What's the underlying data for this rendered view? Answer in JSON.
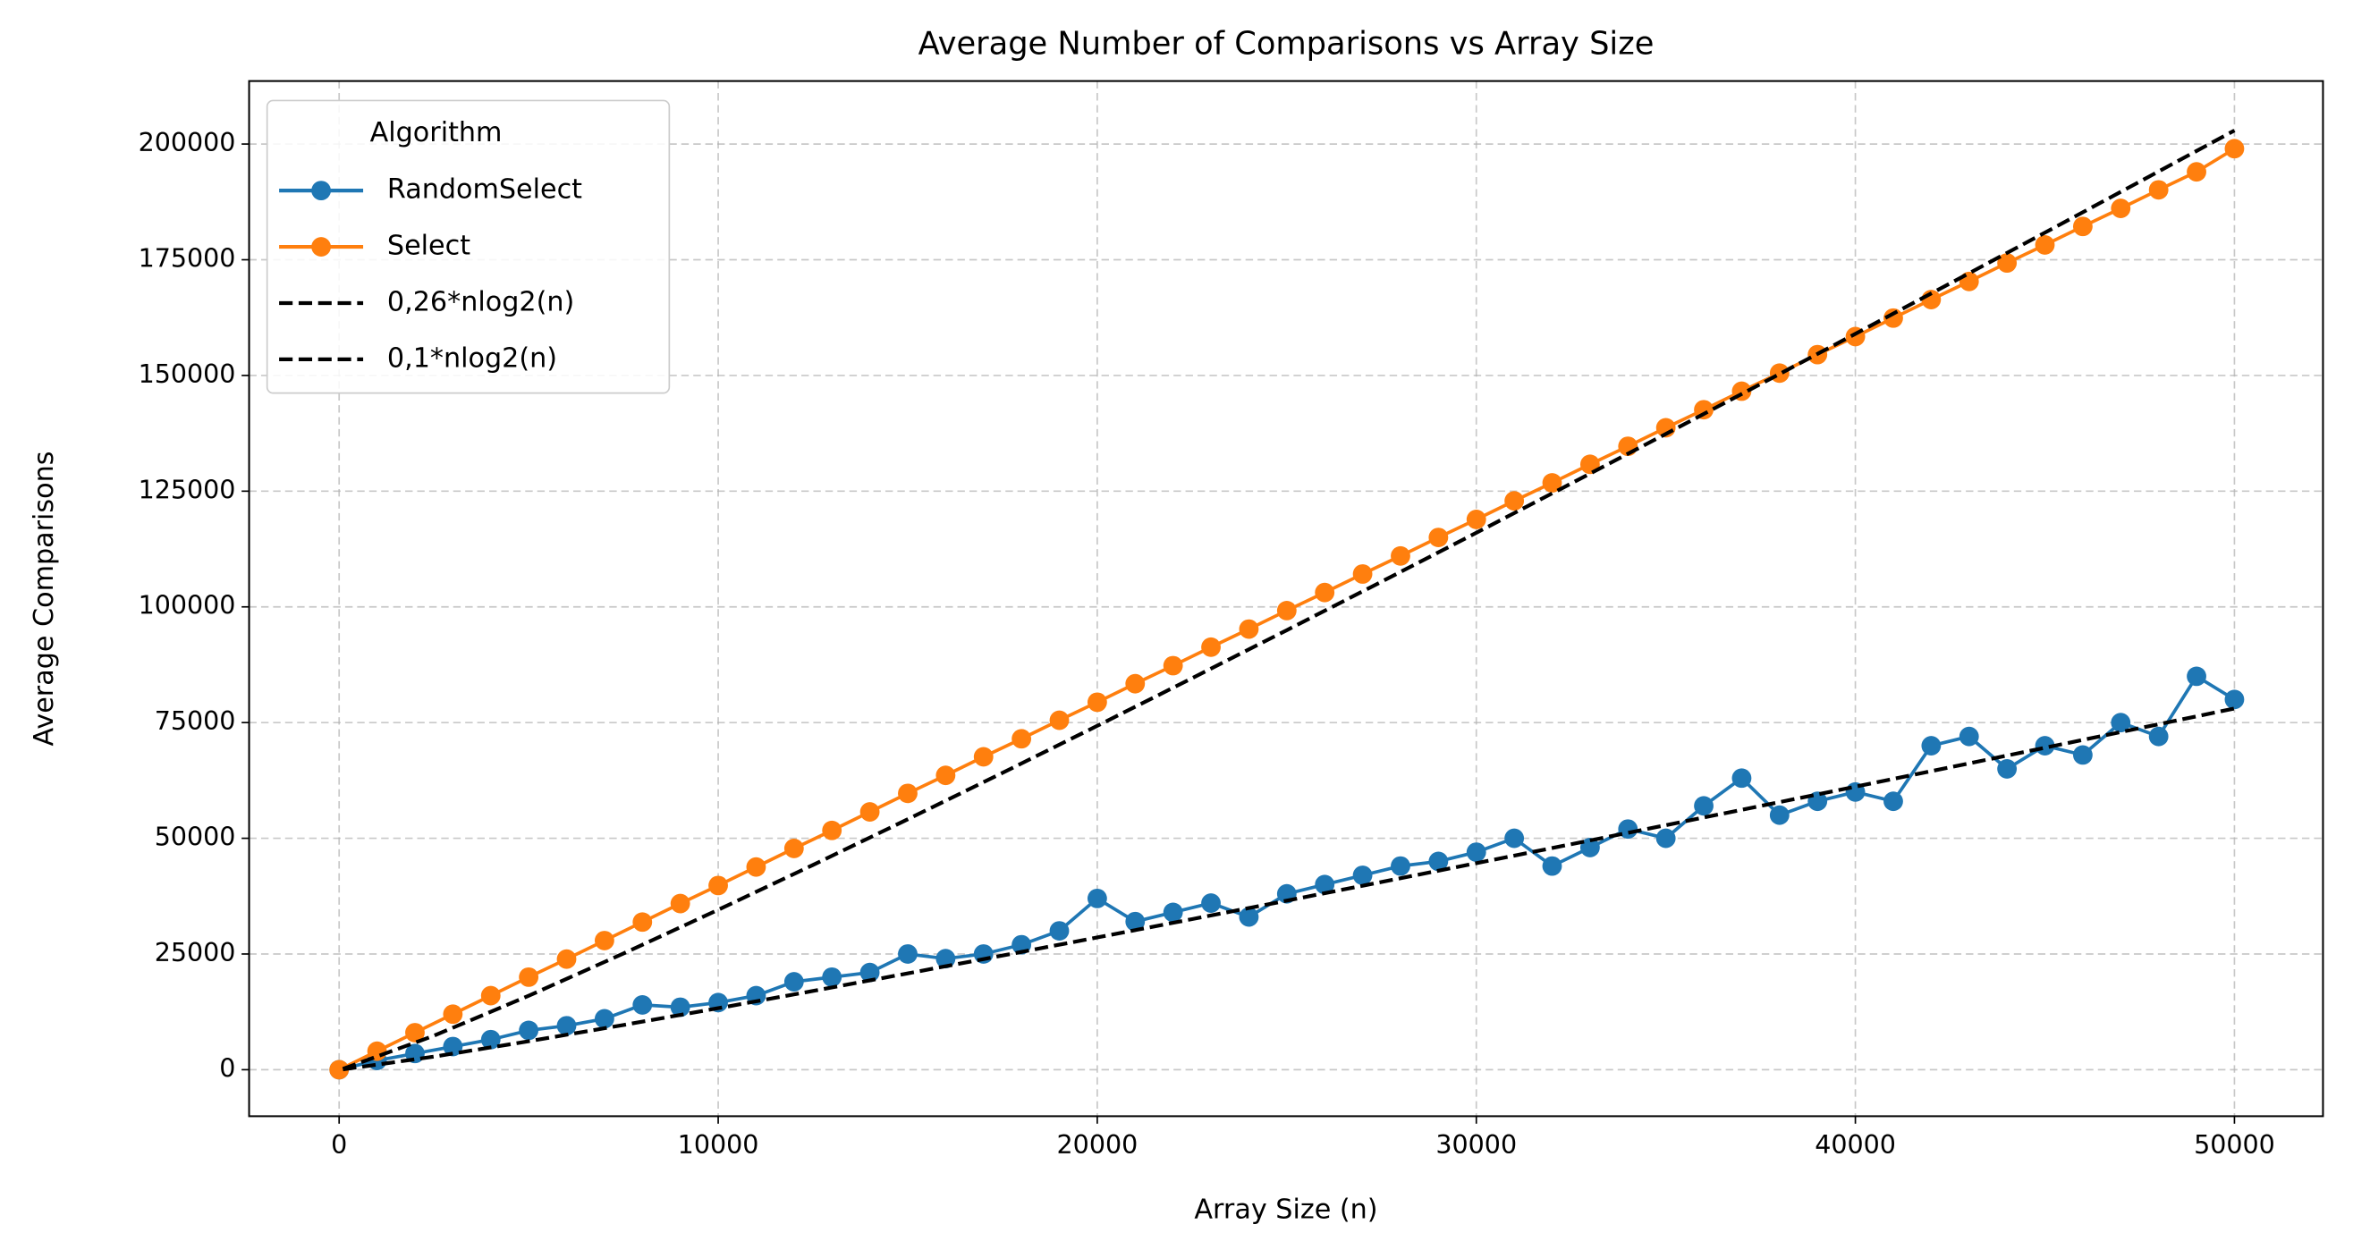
{
  "chart_data": {
    "type": "line",
    "title": "Average Number of Comparisons vs Array Size",
    "x_label": "Array Size (n)",
    "y_label": "Average Comparisons",
    "legend_title": "Algorithm",
    "legend_position": "upper left",
    "grid": true,
    "xlim": [
      -2375,
      52336
    ],
    "ylim": [
      -10048,
      213613
    ],
    "xticks": [
      0,
      10000,
      20000,
      30000,
      40000,
      50000
    ],
    "yticks": [
      0,
      25000,
      50000,
      75000,
      100000,
      125000,
      150000,
      175000,
      200000
    ],
    "series": [
      {
        "name": "RandomSelect",
        "color": "#1f77b4",
        "linestyle": "solid",
        "marker": "o",
        "x": [
          0,
          1000,
          2000,
          3000,
          4000,
          5000,
          6000,
          7000,
          8000,
          9000,
          10000,
          11000,
          12000,
          13000,
          14000,
          15000,
          16000,
          17000,
          18000,
          19000,
          20000,
          21000,
          22000,
          23000,
          24000,
          25000,
          26000,
          27000,
          28000,
          29000,
          30000,
          31000,
          32000,
          33000,
          34000,
          35000,
          36000,
          37000,
          38000,
          39000,
          40000,
          41000,
          42000,
          43000,
          44000,
          45000,
          46000,
          47000,
          48000,
          49000,
          50000
        ],
        "values": [
          0,
          2000,
          3500,
          5000,
          6500,
          8500,
          9500,
          11000,
          14000,
          13500,
          14500,
          16000,
          19000,
          20000,
          21000,
          25000,
          24000,
          25000,
          27000,
          30000,
          37000,
          32000,
          34000,
          36000,
          33000,
          38000,
          40000,
          42000,
          44000,
          45000,
          47000,
          50000,
          44000,
          48000,
          52000,
          50000,
          57000,
          63000,
          55000,
          58000,
          60000,
          58000,
          70000,
          72000,
          65000,
          70000,
          68000,
          75000,
          72000,
          85000,
          80000
        ]
      },
      {
        "name": "Select",
        "color": "#ff7f0e",
        "linestyle": "solid",
        "marker": "o",
        "x": [
          0,
          1000,
          2000,
          3000,
          4000,
          5000,
          6000,
          7000,
          8000,
          9000,
          10000,
          11000,
          12000,
          13000,
          14000,
          15000,
          16000,
          17000,
          18000,
          19000,
          20000,
          21000,
          22000,
          23000,
          24000,
          25000,
          26000,
          27000,
          28000,
          29000,
          30000,
          31000,
          32000,
          33000,
          34000,
          35000,
          36000,
          37000,
          38000,
          39000,
          40000,
          41000,
          42000,
          43000,
          44000,
          45000,
          46000,
          47000,
          48000,
          49000,
          50000
        ],
        "values": [
          0,
          4000,
          8000,
          12000,
          16000,
          20000,
          23900,
          27900,
          31900,
          35900,
          39800,
          43800,
          47800,
          51700,
          55700,
          59700,
          63600,
          67600,
          71500,
          75500,
          79400,
          83400,
          87300,
          91300,
          95200,
          99200,
          103100,
          107100,
          111000,
          115000,
          118900,
          122900,
          126800,
          130800,
          134700,
          138700,
          142600,
          146600,
          150500,
          154500,
          158400,
          162400,
          166400,
          170300,
          174300,
          178200,
          182200,
          186100,
          190100,
          194000,
          199000
        ]
      },
      {
        "name": "0,26*nlog2(n)",
        "color": "#000000",
        "linestyle": "dashed",
        "marker": "none",
        "x": [
          100,
          2500,
          5000,
          7500,
          10000,
          12500,
          15000,
          17500,
          20000,
          22500,
          25000,
          27500,
          30000,
          32500,
          35000,
          37500,
          40000,
          42500,
          45000,
          47500,
          50000
        ],
        "values": [
          173,
          7337,
          15974,
          25102,
          34548,
          44233,
          54105,
          64132,
          74296,
          84579,
          94963,
          105441,
          116007,
          126649,
          137365,
          148151,
          158992,
          169894,
          180857,
          191870,
          202925
        ]
      },
      {
        "name": "0,1*nlog2(n)",
        "color": "#000000",
        "linestyle": "dashed",
        "marker": "none",
        "x": [
          100,
          2500,
          5000,
          7500,
          10000,
          12500,
          15000,
          17500,
          20000,
          22500,
          25000,
          27500,
          30000,
          32500,
          35000,
          37500,
          40000,
          42500,
          45000,
          47500,
          50000
        ],
        "values": [
          66,
          2822,
          6144,
          9655,
          13288,
          17013,
          20810,
          24666,
          28575,
          32531,
          36524,
          40554,
          44618,
          48711,
          52833,
          56981,
          61151,
          65344,
          69560,
          73796,
          78048
        ]
      }
    ]
  }
}
